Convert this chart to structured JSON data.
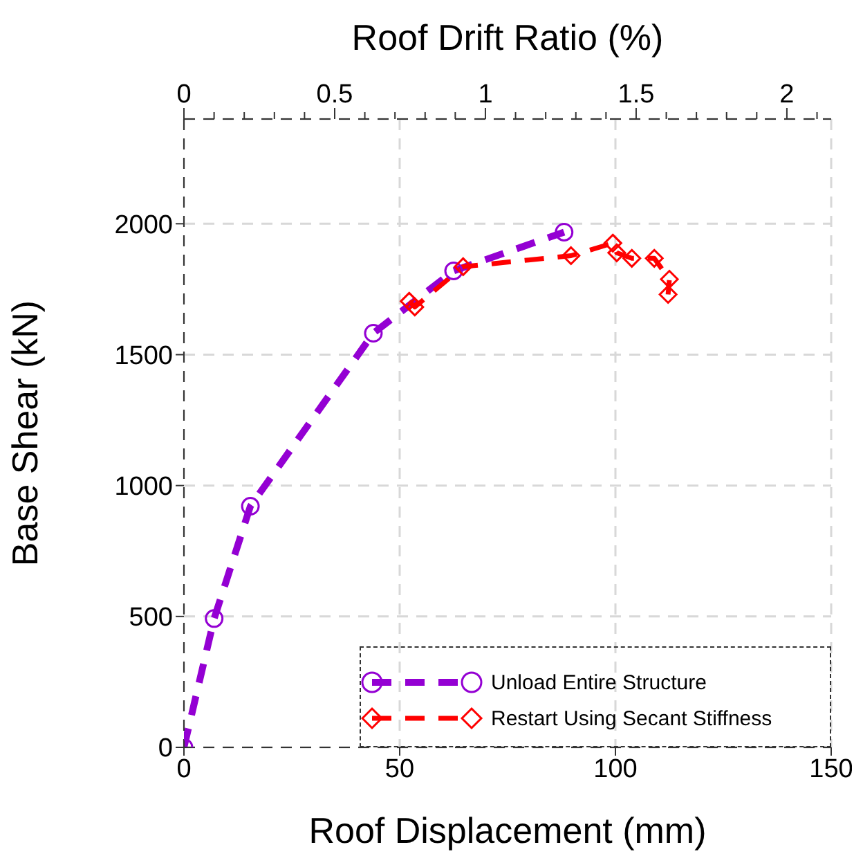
{
  "chart_data": {
    "type": "line",
    "xlabel": "Roof Displacement (mm)",
    "ylabel": "Base Shear (kN)",
    "x2label": "Roof Drift Ratio (%)",
    "xlim": [
      0,
      150
    ],
    "xticks": [
      0,
      50,
      100,
      150
    ],
    "ylim": [
      0,
      2400
    ],
    "yticks": [
      0,
      500,
      1000,
      1500,
      2000
    ],
    "x2lim": [
      0,
      2.147
    ],
    "x2ticks": [
      0,
      {
        "value": 0.1,
        "label": null
      },
      {
        "value": 0.2,
        "label": null
      },
      {
        "value": 0.3,
        "label": null
      },
      {
        "value": 0.4,
        "label": null
      },
      0.5,
      {
        "value": 0.6,
        "label": null
      },
      {
        "value": 0.7,
        "label": null
      },
      {
        "value": 0.8,
        "label": null
      },
      {
        "value": 0.9,
        "label": null
      },
      1,
      {
        "value": 1.1,
        "label": null
      },
      {
        "value": 1.2,
        "label": null
      },
      {
        "value": 1.3,
        "label": null
      },
      {
        "value": 1.4,
        "label": null
      },
      1.5,
      {
        "value": 1.6,
        "label": null
      },
      {
        "value": 1.7,
        "label": null
      },
      {
        "value": 1.8,
        "label": null
      },
      {
        "value": 1.9,
        "label": null
      },
      2,
      {
        "value": 2.1,
        "label": null
      }
    ],
    "grid": true,
    "legend": "bottom right",
    "line_style": "dashed",
    "series": [
      {
        "name": "Unload Entire Structure",
        "color": "#9400d3",
        "marker": "circle",
        "x": [
          0,
          7,
          15.4,
          43.9,
          62.5,
          88.1
        ],
        "values": [
          0,
          492,
          921,
          1582,
          1820,
          1968
        ]
      },
      {
        "name": "Restart Using Secant Stiffness",
        "color": "#ff0000",
        "marker": "diamond",
        "x": [
          52.2,
          53.5,
          64.7,
          89.7,
          99.4,
          100.3,
          103.8,
          109,
          112.5,
          112.2
        ],
        "values": [
          1704,
          1682,
          1836,
          1878,
          1926,
          1889,
          1868,
          1868,
          1788,
          1730
        ]
      }
    ]
  }
}
